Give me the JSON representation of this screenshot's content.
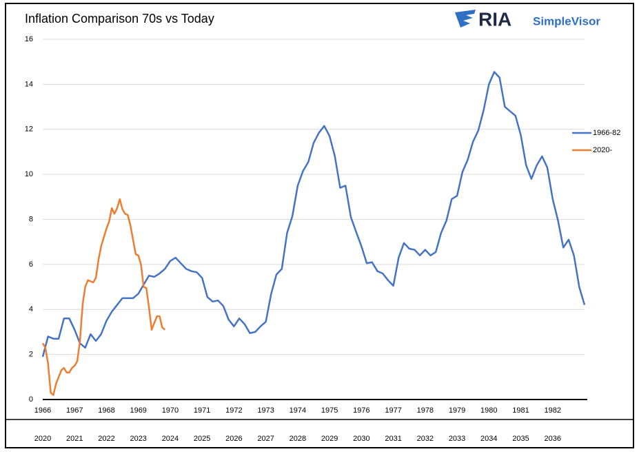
{
  "chart_data": {
    "type": "line",
    "title": "Inflation Comparison 70s vs Today",
    "logo": {
      "mark": "RIA",
      "name": "SimpleVisor"
    },
    "xlim": [
      1966,
      1983
    ],
    "xticks": [
      1966,
      1967,
      1968,
      1969,
      1970,
      1971,
      1972,
      1973,
      1974,
      1975,
      1976,
      1977,
      1978,
      1979,
      1980,
      1981,
      1982
    ],
    "x2lim": [
      2020,
      2037
    ],
    "x2ticks": [
      2020,
      2021,
      2022,
      2023,
      2024,
      2025,
      2026,
      2027,
      2028,
      2029,
      2030,
      2031,
      2032,
      2033,
      2034,
      2035,
      2036
    ],
    "ylim": [
      0,
      16
    ],
    "yticks": [
      0,
      2,
      4,
      6,
      8,
      10,
      12,
      14,
      16
    ],
    "grid": true,
    "legend": "right",
    "series": [
      {
        "name": "1966-82",
        "color": "#4472c4",
        "x": [
          1966,
          1966.167,
          1966.333,
          1966.5,
          1966.667,
          1966.833,
          1967,
          1967.167,
          1967.333,
          1967.5,
          1967.667,
          1967.833,
          1968,
          1968.167,
          1968.333,
          1968.5,
          1968.667,
          1968.833,
          1969,
          1969.167,
          1969.333,
          1969.5,
          1969.667,
          1969.833,
          1970,
          1970.167,
          1970.333,
          1970.5,
          1970.667,
          1970.833,
          1971,
          1971.167,
          1971.333,
          1971.5,
          1971.667,
          1971.833,
          1972,
          1972.167,
          1972.333,
          1972.5,
          1972.667,
          1972.833,
          1973,
          1973.167,
          1973.333,
          1973.5,
          1973.667,
          1973.833,
          1974,
          1974.167,
          1974.333,
          1974.5,
          1974.667,
          1974.833,
          1975,
          1975.167,
          1975.333,
          1975.5,
          1975.667,
          1975.833,
          1976,
          1976.167,
          1976.333,
          1976.5,
          1976.667,
          1976.833,
          1977,
          1977.167,
          1977.333,
          1977.5,
          1977.667,
          1977.833,
          1978,
          1978.167,
          1978.333,
          1978.5,
          1978.667,
          1978.833,
          1979,
          1979.167,
          1979.333,
          1979.5,
          1979.667,
          1979.833,
          1980,
          1980.167,
          1980.333,
          1980.5,
          1980.667,
          1980.833,
          1981,
          1981.167,
          1981.333,
          1981.5,
          1981.667,
          1981.833,
          1982,
          1982.167,
          1982.333,
          1982.5,
          1982.667,
          1982.833,
          1983
        ],
        "values": [
          1.9,
          2.8,
          2.7,
          2.7,
          3.6,
          3.6,
          3.1,
          2.5,
          2.3,
          2.9,
          2.6,
          2.9,
          3.5,
          3.9,
          4.2,
          4.5,
          4.5,
          4.5,
          4.7,
          5.1,
          5.5,
          5.45,
          5.6,
          5.8,
          6.15,
          6.3,
          6.05,
          5.8,
          5.7,
          5.65,
          5.4,
          4.55,
          4.35,
          4.4,
          4.15,
          3.55,
          3.25,
          3.6,
          3.35,
          2.95,
          3.0,
          3.25,
          3.45,
          4.7,
          5.55,
          5.8,
          7.4,
          8.15,
          9.5,
          10.15,
          10.55,
          11.4,
          11.85,
          12.15,
          11.7,
          10.8,
          9.4,
          9.5,
          8.1,
          7.45,
          6.8,
          6.05,
          6.1,
          5.7,
          5.6,
          5.3,
          5.05,
          6.3,
          6.95,
          6.7,
          6.65,
          6.4,
          6.65,
          6.4,
          6.55,
          7.4,
          7.95,
          8.9,
          9.05,
          10.1,
          10.65,
          11.45,
          11.95,
          12.85,
          14.0,
          14.55,
          14.3,
          13.0,
          12.8,
          12.6,
          11.75,
          10.4,
          9.8,
          10.4,
          10.8,
          10.3,
          8.9,
          7.95,
          6.75,
          7.1,
          6.4,
          5.0,
          4.2
        ]
      },
      {
        "name": "2020-",
        "color": "#ed7d31",
        "axis": "x2",
        "x": [
          2020,
          2020.083,
          2020.167,
          2020.25,
          2020.333,
          2020.417,
          2020.5,
          2020.583,
          2020.667,
          2020.75,
          2020.833,
          2020.917,
          2021,
          2021.083,
          2021.167,
          2021.25,
          2021.333,
          2021.417,
          2021.5,
          2021.583,
          2021.667,
          2021.75,
          2021.833,
          2021.917,
          2022,
          2022.083,
          2022.167,
          2022.25,
          2022.333,
          2022.417,
          2022.5,
          2022.583,
          2022.667,
          2022.75,
          2022.833,
          2022.917,
          2023,
          2023.083,
          2023.167,
          2023.25,
          2023.333,
          2023.417,
          2023.5,
          2023.583,
          2023.667,
          2023.75,
          2023.833
        ],
        "values": [
          2.5,
          2.3,
          1.6,
          0.3,
          0.2,
          0.7,
          1.0,
          1.3,
          1.4,
          1.2,
          1.2,
          1.4,
          1.5,
          1.7,
          2.6,
          4.2,
          5.0,
          5.3,
          5.25,
          5.2,
          5.4,
          6.2,
          6.8,
          7.2,
          7.6,
          7.9,
          8.5,
          8.25,
          8.5,
          8.9,
          8.45,
          8.25,
          8.2,
          7.75,
          7.1,
          6.45,
          6.4,
          6.0,
          5.0,
          4.95,
          4.1,
          3.1,
          3.4,
          3.7,
          3.7,
          3.2,
          3.1
        ]
      }
    ]
  }
}
